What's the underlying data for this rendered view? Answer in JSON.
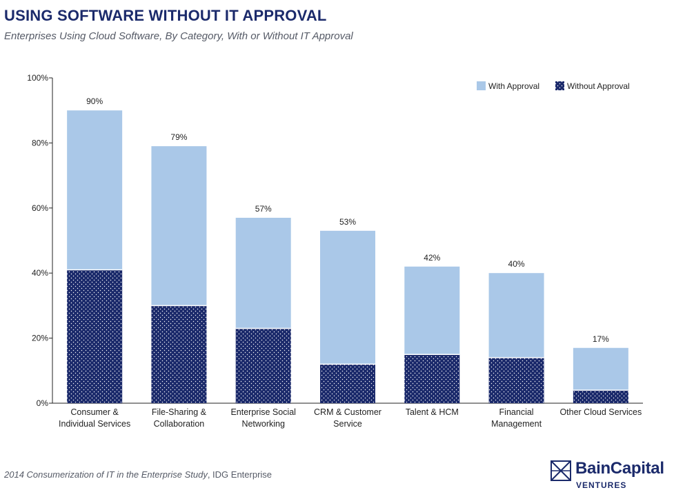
{
  "header": {
    "title": "USING SOFTWARE WITHOUT IT APPROVAL",
    "subtitle": "Enterprises Using Cloud Software, By Category, With or Without IT Approval"
  },
  "footer": {
    "source_title": "2014 Consumerization of IT in the Enterprise Study",
    "source_org": ", IDG Enterprise"
  },
  "logo": {
    "name": "BainCapital",
    "sub": "VENTURES"
  },
  "colors": {
    "with_approval": "#aac8e8",
    "without_approval": "#1b2a6b",
    "axis": "#222222"
  },
  "chart_data": {
    "type": "bar",
    "stacked": true,
    "categories": [
      [
        "Consumer &",
        "Individual Services"
      ],
      [
        "File-Sharing &",
        "Collaboration"
      ],
      [
        "Enterprise Social",
        "Networking"
      ],
      [
        "CRM & Customer",
        "Service"
      ],
      [
        "Talent & HCM"
      ],
      [
        "Financial",
        "Management"
      ],
      [
        "Other Cloud Services"
      ]
    ],
    "series": [
      {
        "name": "Without Approval",
        "values": [
          41,
          30,
          23,
          12,
          15,
          14,
          4
        ]
      },
      {
        "name": "With Approval",
        "values": [
          49,
          49,
          34,
          41,
          27,
          26,
          13
        ]
      }
    ],
    "totals": [
      90,
      79,
      57,
      53,
      42,
      40,
      17
    ],
    "total_labels": [
      "90%",
      "79%",
      "57%",
      "53%",
      "42%",
      "40%",
      "17%"
    ],
    "ylim": [
      0,
      100
    ],
    "yticks": [
      0,
      20,
      40,
      60,
      80,
      100
    ],
    "ytick_labels": [
      "0%",
      "20%",
      "40%",
      "60%",
      "80%",
      "100%"
    ],
    "legend": [
      "With Approval",
      "Without Approval"
    ],
    "legend_position": "top-right",
    "grid": false
  }
}
